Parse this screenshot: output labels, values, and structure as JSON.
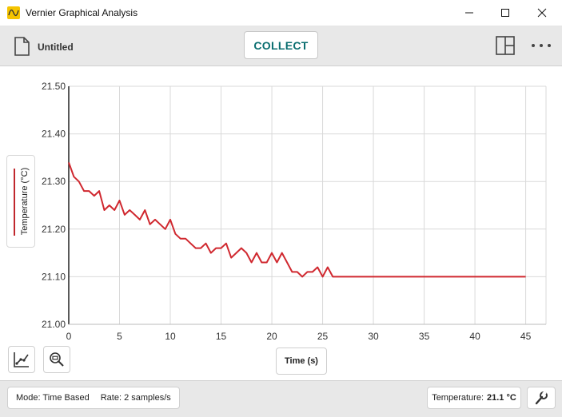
{
  "window": {
    "title": "Vernier Graphical Analysis",
    "icon": "vernier-logo-icon",
    "controls": [
      "minimize-icon",
      "maximize-icon",
      "close-icon"
    ]
  },
  "toolbar": {
    "document_name": "Untitled",
    "collect_label": "COLLECT",
    "icons": [
      "document-icon",
      "layout-icon",
      "more-icon"
    ]
  },
  "graph": {
    "y_axis_label": "Temperature (°C)",
    "x_axis_label": "Time (s)",
    "tools": [
      "graph-options-icon",
      "zoom-icon"
    ]
  },
  "chart_data": {
    "type": "line",
    "series_color": "#d0282f",
    "xlim": [
      0,
      47
    ],
    "ylim": [
      21.0,
      21.5
    ],
    "x_ticks": [
      "0",
      "5",
      "10",
      "15",
      "20",
      "25",
      "30",
      "35",
      "40",
      "45"
    ],
    "y_ticks": [
      "21.00",
      "21.10",
      "21.20",
      "21.30",
      "21.40",
      "21.50"
    ],
    "grid": true,
    "x": [
      0,
      0.5,
      1,
      1.5,
      2,
      2.5,
      3,
      3.5,
      4,
      4.5,
      5,
      5.5,
      6,
      6.5,
      7,
      7.5,
      8,
      8.5,
      9,
      9.5,
      10,
      10.5,
      11,
      11.5,
      12,
      12.5,
      13,
      13.5,
      14,
      14.5,
      15,
      15.5,
      16,
      16.5,
      17,
      17.5,
      18,
      18.5,
      19,
      19.5,
      20,
      20.5,
      21,
      21.5,
      22,
      22.5,
      23,
      23.5,
      24,
      24.5,
      25,
      25.5,
      26,
      45
    ],
    "y": [
      21.34,
      21.31,
      21.3,
      21.28,
      21.28,
      21.27,
      21.28,
      21.24,
      21.25,
      21.24,
      21.26,
      21.23,
      21.24,
      21.23,
      21.22,
      21.24,
      21.21,
      21.22,
      21.21,
      21.2,
      21.22,
      21.19,
      21.18,
      21.18,
      21.17,
      21.16,
      21.16,
      21.17,
      21.15,
      21.16,
      21.16,
      21.17,
      21.14,
      21.15,
      21.16,
      21.15,
      21.13,
      21.15,
      21.13,
      21.13,
      21.15,
      21.13,
      21.15,
      21.13,
      21.11,
      21.11,
      21.1,
      21.11,
      21.11,
      21.12,
      21.1,
      21.12,
      21.1,
      21.1
    ]
  },
  "status": {
    "mode_label": "Mode: Time Based",
    "rate_label": "Rate: 2 samples/s",
    "sensor_label": "Temperature:",
    "sensor_value": "21.1 °C",
    "icons": [
      "wrench-icon"
    ]
  }
}
